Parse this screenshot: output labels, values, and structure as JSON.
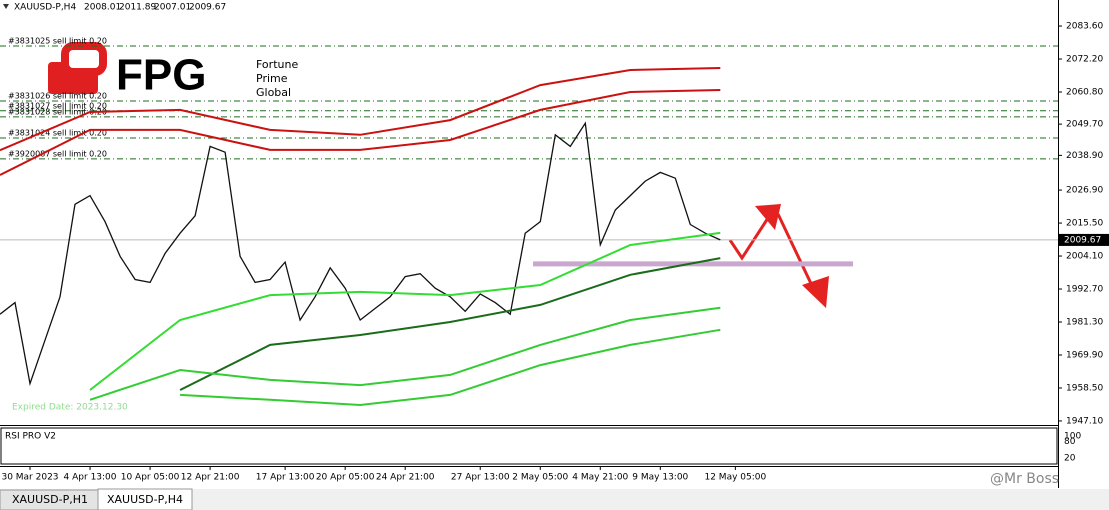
{
  "chart_data": {
    "type": "line",
    "symbol": "XAUUSD-P,H4",
    "header_ohlc": [
      2008.01,
      2011.89,
      2007.01,
      2009.67
    ],
    "bid": 2009.67,
    "ylim": [
      1945.7,
      2092.6
    ],
    "yticks": [
      {
        "value": 2083.6,
        "label": "2083.60"
      },
      {
        "value": 2072.2,
        "label": "2072.20"
      },
      {
        "value": 2060.8,
        "label": "2060.80"
      },
      {
        "value": 2049.7,
        "label": "2049.70"
      },
      {
        "value": 2038.9,
        "label": "2038.90"
      },
      {
        "value": 2026.9,
        "label": "2026.90"
      },
      {
        "value": 2015.5,
        "label": "2015.50"
      },
      {
        "value": 2004.1,
        "label": "2004.10"
      },
      {
        "value": 1992.7,
        "label": "1992.70"
      },
      {
        "value": 1981.3,
        "label": "1981.30"
      },
      {
        "value": 1969.9,
        "label": "1969.90"
      },
      {
        "value": 1958.5,
        "label": "1958.50"
      },
      {
        "value": 1947.1,
        "label": "1947.10"
      }
    ],
    "xlim": [
      0,
      70.5
    ],
    "xticks": [
      {
        "value": 2,
        "label": "30 Mar 2023"
      },
      {
        "value": 6,
        "label": "4 Apr 13:00"
      },
      {
        "value": 10,
        "label": "10 Apr 05:00"
      },
      {
        "value": 14,
        "label": "12 Apr 21:00"
      },
      {
        "value": 19,
        "label": "17 Apr 13:00"
      },
      {
        "value": 23,
        "label": "20 Apr 05:00"
      },
      {
        "value": 27,
        "label": "24 Apr 21:00"
      },
      {
        "value": 32,
        "label": "27 Apr 13:00"
      },
      {
        "value": 36,
        "label": "2 May 05:00"
      },
      {
        "value": 40,
        "label": "4 May 21:00"
      },
      {
        "value": 44,
        "label": "9 May 13:00"
      },
      {
        "value": 49,
        "label": "12 May 05:00"
      }
    ],
    "series": [
      {
        "color": "#111111",
        "values": [
          1984,
          1988,
          1960,
          1975,
          1990,
          2022,
          2025,
          2016,
          2004,
          1996,
          1995,
          2005,
          2012,
          2018,
          2042,
          2040,
          2004,
          1995,
          1996,
          2002,
          1982,
          1990,
          2000,
          1993,
          1982,
          1986,
          1990,
          1997,
          1998,
          1993,
          1990,
          1985,
          1991,
          1988,
          1984,
          2012,
          2016,
          2046,
          2042,
          2050,
          2008,
          2020,
          2025,
          2030,
          2033,
          2031,
          2015,
          2012,
          2009.67
        ]
      },
      {
        "color": "#cc1111",
        "x": [
          0,
          6,
          12,
          18,
          24,
          30,
          36,
          42,
          48
        ],
        "values": [
          2040.7,
          2053.9,
          2054.6,
          2047.7,
          2046.0,
          2051.1,
          2063.2,
          2068.4,
          2069.1
        ]
      },
      {
        "color": "#cc1111",
        "x": [
          0,
          6,
          12,
          18,
          24,
          30,
          36,
          42,
          48
        ],
        "values": [
          2032.1,
          2047.7,
          2047.7,
          2040.8,
          2040.8,
          2044.2,
          2054.6,
          2060.8,
          2061.5
        ]
      },
      {
        "color": "#33dd33",
        "x": [
          0,
          6,
          12,
          18,
          24,
          30,
          36,
          42,
          48
        ],
        "values": [
          null,
          1957.8,
          1982.0,
          1990.6,
          1991.7,
          1990.6,
          1994.1,
          2007.9,
          2012.1
        ]
      },
      {
        "color": "#1a6b1a",
        "x": [
          0,
          6,
          12,
          18,
          24,
          30,
          36,
          42,
          48
        ],
        "values": [
          null,
          null,
          1957.8,
          1973.4,
          1976.8,
          1981.3,
          1987.2,
          1997.6,
          2003.4
        ]
      },
      {
        "color": "#33cc33",
        "x": [
          0,
          6,
          12,
          18,
          24,
          30,
          36,
          42,
          48
        ],
        "values": [
          null,
          1954.4,
          1964.7,
          1961.3,
          1959.5,
          1963.0,
          1973.4,
          1982.0,
          1986.2
        ]
      },
      {
        "color": "#33cc33",
        "x": [
          0,
          6,
          12,
          18,
          24,
          30,
          36,
          42,
          48
        ],
        "values": [
          null,
          null,
          1956.1,
          1954.4,
          1952.6,
          1956.1,
          1966.4,
          1973.4,
          1978.6
        ]
      }
    ],
    "orders": [
      {
        "label": "#3831025 sell limit 0.20",
        "value": 2076.7
      },
      {
        "label": "#3831026 sell limit 0.20",
        "value": 2057.7
      },
      {
        "label": "#3831027 sell limit 0.20",
        "value": 2054.3
      },
      {
        "label": "#3831028 sell limit 0.20",
        "value": 2052.2
      },
      {
        "label": "#3831024 sell limit 0.20",
        "value": 2044.9
      },
      {
        "label": "#3920087 sell limit 0.20",
        "value": 2037.7
      }
    ],
    "support_level": 2001.4,
    "expiry_note": "Expired Date: 2023.12.30",
    "logo": {
      "mark": "FPG",
      "lines": [
        "Fortune",
        "Prime",
        "Global"
      ]
    },
    "indicator": {
      "name": "RSI PRO V2",
      "yticks": [
        100,
        80,
        20
      ]
    },
    "watermark": "@Mr Boss",
    "tabs": [
      "XAUUSD-P,H1",
      "XAUUSD-P,H4"
    ]
  }
}
